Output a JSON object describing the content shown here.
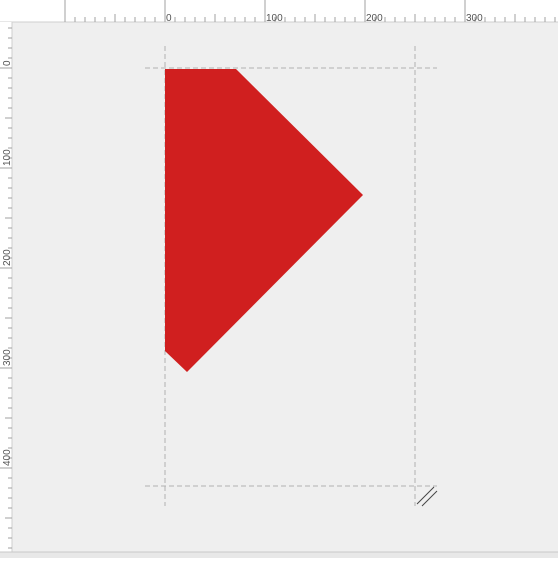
{
  "ruler": {
    "horizontal_labels": [
      "0",
      "100",
      "200",
      "300"
    ],
    "vertical_labels": [
      "0",
      "100",
      "200",
      "300",
      "400"
    ]
  },
  "shape": {
    "name": "red-polygon",
    "fill": "#d01f1f"
  },
  "colors": {
    "canvas_background": "#efefef",
    "ruler_background": "#ffffff",
    "ruler_tick": "#a0a0a0",
    "ruler_text": "#555555",
    "guide_line": "#b0b0b0"
  },
  "icons": {
    "resize_handle": "resize-handle-icon"
  }
}
